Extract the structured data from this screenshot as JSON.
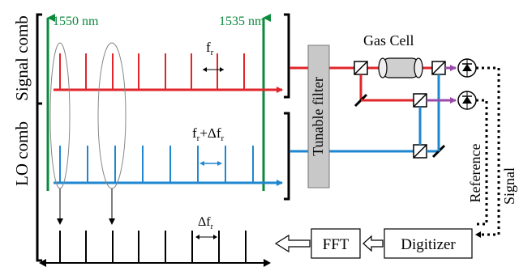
{
  "labels": {
    "signal_comb": "Signal comb",
    "lo_comb": "LO comb",
    "wavelength_left": "1550 nm",
    "wavelength_right": "1535 nm",
    "fr_base": "f",
    "fr_sub": "r",
    "lo_spacing_base": "f",
    "lo_spacing_sub": "r",
    "lo_spacing_plus": "+Δf",
    "lo_spacing_sub2": "r",
    "tunable_filter": "Tunable filter",
    "gas_cell": "Gas Cell",
    "reference": "Reference",
    "signal": "Signal",
    "fft": "FFT",
    "digitizer": "Digitizer",
    "delta_fr_base": "Δf",
    "delta_fr_sub": "r"
  },
  "colors": {
    "signal_red": "#e0262b",
    "lo_blue": "#1f86d0",
    "marker_green": "#0b8a3c",
    "filter_gray": "#c8c8c8",
    "combined_purple": "#9a4aa8"
  }
}
